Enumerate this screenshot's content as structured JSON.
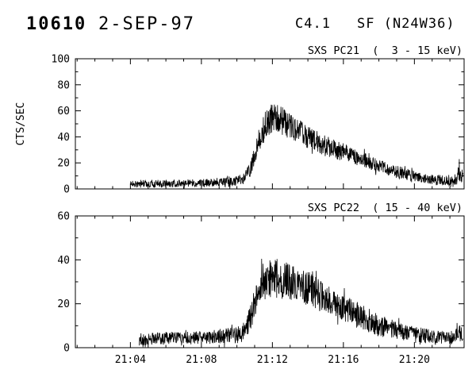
{
  "header": {
    "event_number": "10610",
    "date": "2-SEP-97",
    "goes_class": "C4.1",
    "flare_type": "SF (N24W36)"
  },
  "chart_data": [
    {
      "type": "line",
      "title": "SXS PC21  (  3 - 15 keV)",
      "ylabel": "CTS/SEC",
      "ylim": [
        0,
        100
      ],
      "yticks": [
        0,
        20,
        40,
        60,
        80,
        100
      ],
      "y_minor_step": 10,
      "xlim": [
        0.9,
        22.8
      ],
      "xticks": [
        4,
        8,
        12,
        16,
        20
      ],
      "xtick_labels": [
        "21:04",
        "21:08",
        "21:12",
        "21:16",
        "21:20"
      ],
      "show_x_labels": false,
      "x_minor_step": 1,
      "line_color": "#000000",
      "grid": false,
      "profile_keypoints": [
        [
          4.0,
          4,
          3
        ],
        [
          6.0,
          4,
          3
        ],
        [
          8.0,
          4.5,
          3
        ],
        [
          9.5,
          5,
          3.5
        ],
        [
          10.3,
          7,
          4
        ],
        [
          10.8,
          16,
          6
        ],
        [
          11.2,
          36,
          9
        ],
        [
          11.6,
          50,
          11
        ],
        [
          12.0,
          54,
          12
        ],
        [
          12.6,
          52,
          11
        ],
        [
          13.2,
          47,
          10
        ],
        [
          14.0,
          40,
          9
        ],
        [
          15.0,
          33,
          8
        ],
        [
          16.0,
          28,
          7
        ],
        [
          17.0,
          23,
          6
        ],
        [
          18.0,
          18,
          5
        ],
        [
          19.0,
          13,
          5
        ],
        [
          20.0,
          10,
          4
        ],
        [
          21.0,
          7,
          4
        ],
        [
          22.3,
          6,
          4
        ],
        [
          22.55,
          13,
          7
        ],
        [
          22.75,
          9,
          5
        ]
      ]
    },
    {
      "type": "line",
      "title": "SXS PC22  ( 15 - 40 keV)",
      "ylabel": "",
      "ylim": [
        0,
        60
      ],
      "yticks": [
        0,
        20,
        40,
        60
      ],
      "y_minor_step": 10,
      "xlim": [
        0.9,
        22.8
      ],
      "xticks": [
        4,
        8,
        12,
        16,
        20
      ],
      "xtick_labels": [
        "21:04",
        "21:08",
        "21:12",
        "21:16",
        "21:20"
      ],
      "show_x_labels": true,
      "x_minor_step": 1,
      "line_color": "#000000",
      "grid": false,
      "profile_keypoints": [
        [
          4.5,
          4,
          3
        ],
        [
          8.0,
          4.5,
          3
        ],
        [
          10.3,
          6,
          4
        ],
        [
          10.8,
          14,
          6
        ],
        [
          11.2,
          27,
          8
        ],
        [
          11.6,
          31,
          9
        ],
        [
          12.0,
          32,
          9
        ],
        [
          12.6,
          31,
          9
        ],
        [
          13.3,
          29,
          8
        ],
        [
          14.0,
          27,
          8
        ],
        [
          15.0,
          22,
          7
        ],
        [
          16.0,
          18,
          6
        ],
        [
          17.0,
          14,
          6
        ],
        [
          18.0,
          10,
          5
        ],
        [
          19.0,
          8,
          4
        ],
        [
          20.0,
          6,
          4
        ],
        [
          21.0,
          5,
          3
        ],
        [
          22.0,
          4,
          3
        ],
        [
          22.5,
          7,
          4
        ],
        [
          22.75,
          5,
          3
        ]
      ]
    }
  ]
}
